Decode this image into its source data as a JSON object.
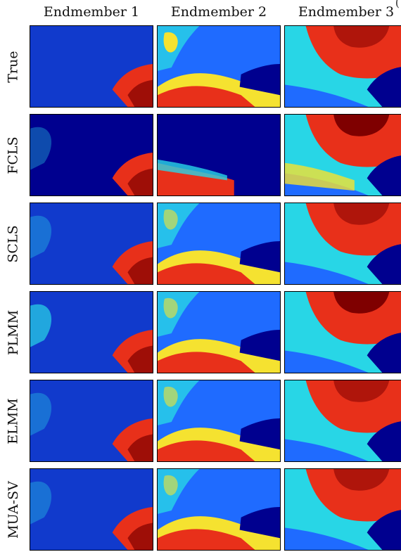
{
  "columns": [
    "Endmember 1",
    "Endmember 2",
    "Endmember 3"
  ],
  "rows": [
    "True",
    "FCLS",
    "SCLS",
    "PLMM",
    "ELMM",
    "MUA-SV"
  ],
  "corner_glyph": "(",
  "colormap": "jet",
  "colors": {
    "low": "#00008f",
    "mid_low": "#1f6bff",
    "mid": "#28d6e6",
    "mid_high": "#f5e230",
    "high": "#e8301a",
    "max": "#7f0000"
  }
}
